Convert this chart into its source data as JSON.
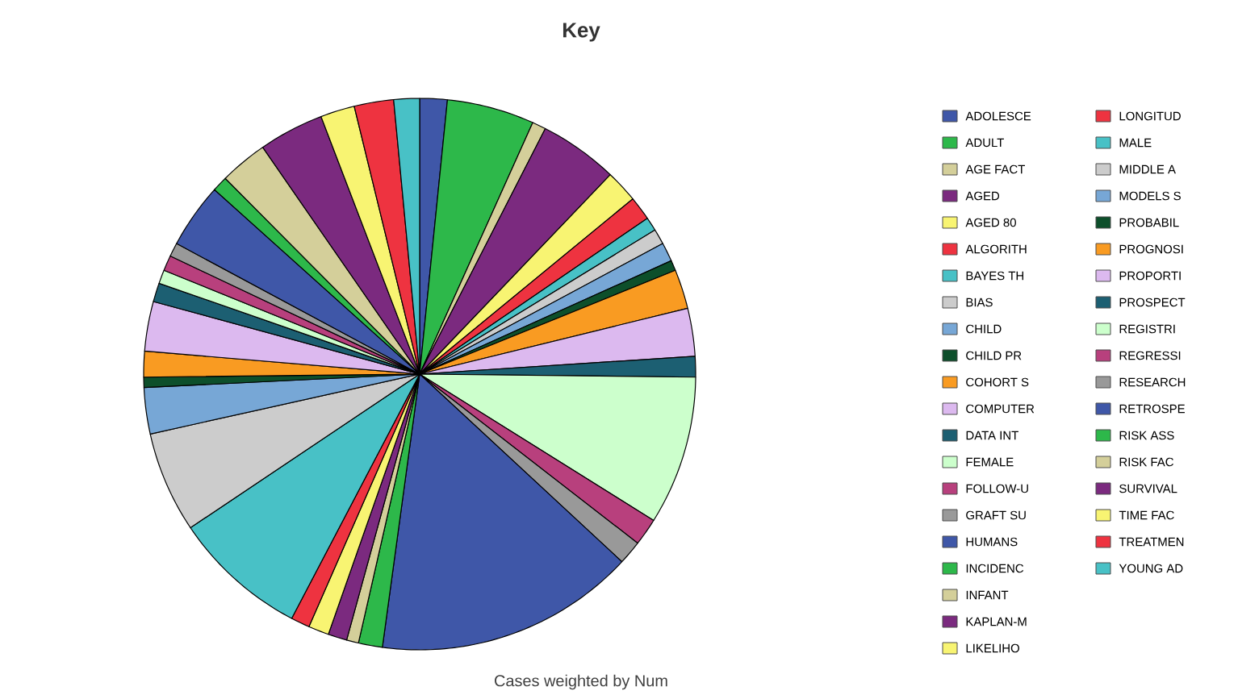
{
  "chart_data": {
    "type": "pie",
    "title": "Key",
    "annotations": [
      "Cases weighted by Num"
    ],
    "legend": "right",
    "categories": [
      "ADOLESCE",
      "ADULT",
      "AGE FACT",
      "AGED",
      "AGED 80",
      "ALGORITH",
      "BAYES TH",
      "BIAS",
      "CHILD",
      "CHILD PR",
      "COHORT S",
      "COMPUTER",
      "DATA INT",
      "FEMALE",
      "FOLLOW-U",
      "GRAFT SU",
      "HUMANS",
      "INCIDENC",
      "INFANT",
      "KAPLAN-M",
      "LIKELIHO",
      "LONGITUD",
      "MALE",
      "MIDDLE A",
      "MODELS S",
      "PROBABIL",
      "PROGNOSI",
      "PROPORTI",
      "PROSPECT",
      "REGISTRI",
      "REGRESSI",
      "RESEARCH",
      "RETROSPE",
      "RISK ASS",
      "RISK FAC",
      "SURVIVAL",
      "TIME FAC",
      "TREATMEN",
      "YOUNG AD"
    ],
    "values": [
      1.6,
      5.1,
      0.8,
      4.6,
      1.9,
      1.4,
      0.8,
      0.9,
      1.1,
      0.6,
      2.3,
      2.8,
      1.2,
      8.7,
      1.6,
      1.4,
      15.2,
      1.4,
      0.7,
      1.1,
      1.2,
      1.1,
      7.9,
      5.9,
      2.7,
      0.6,
      1.5,
      2.9,
      1.1,
      0.8,
      0.9,
      0.8,
      3.8,
      0.9,
      2.8,
      3.8,
      2.0,
      2.3,
      1.5
    ],
    "colors": [
      "#3f57a8",
      "#2db84a",
      "#d4cf9a",
      "#7b2a7f",
      "#f8f472",
      "#ee3340",
      "#48c1c6",
      "#cccccc",
      "#77a7d6",
      "#0d4f2b",
      "#f99b22",
      "#dcb9ef",
      "#1c5f72",
      "#ccffcc",
      "#b8407d",
      "#999999",
      "#3f57a8",
      "#2db84a",
      "#d4cf9a",
      "#7b2a7f",
      "#f8f472",
      "#ee3340",
      "#48c1c6",
      "#cccccc",
      "#77a7d6",
      "#0d4f2b",
      "#f99b22",
      "#dcb9ef",
      "#1c5f72",
      "#ccffcc",
      "#b8407d",
      "#999999",
      "#3f57a8",
      "#2db84a",
      "#d4cf9a",
      "#7b2a7f",
      "#f8f472",
      "#ee3340",
      "#48c1c6"
    ]
  }
}
